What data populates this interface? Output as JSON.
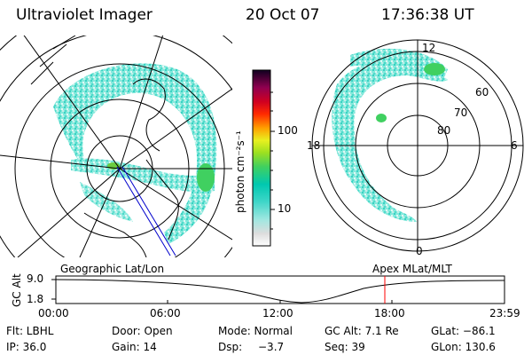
{
  "header": {
    "instrument": "Ultraviolet Imager",
    "date": "20 Oct 07",
    "time": "17:36:38 UT"
  },
  "colorbar": {
    "unit_label": "photon cm⁻²s⁻¹",
    "ticks": [
      "100",
      "10"
    ],
    "scale": "log"
  },
  "right_plot": {
    "mlt_labels": [
      "12",
      "18",
      "6",
      "0"
    ],
    "lat_labels": [
      "60",
      "70",
      "80"
    ]
  },
  "timeline": {
    "y_axis_label": "GC Alt",
    "y_ticks": [
      "9.0",
      "1.8"
    ],
    "left_label": "Geographic Lat/Lon",
    "right_label": "Apex MLat/MLT",
    "x_ticks": [
      "00:00",
      "06:00",
      "12:00",
      "18:00",
      "23:59"
    ],
    "current_marker": "17:36"
  },
  "status": {
    "flt": "Flt: LBHL",
    "ip": "IP: 36.0",
    "door": "Door: Open",
    "gain": "Gain: 14",
    "mode": "Mode: Normal",
    "dsp_label": "Dsp:",
    "dsp_value": "−3.7",
    "gc_alt": "GC Alt: 7.1 Re",
    "seq": "Seq: 39",
    "glat": "GLat: −86.1",
    "glon": "GLon: 130.6"
  },
  "colors": {
    "aurora": "#40e0d0",
    "marker": "#ff0000"
  }
}
